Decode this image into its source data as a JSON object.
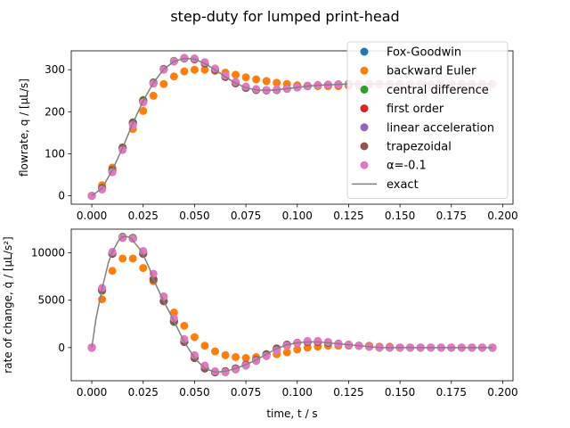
{
  "figure_title": "step-duty for lumped print-head",
  "colors": {
    "Fox-Goodwin": "#1f77b4",
    "backward Euler": "#ff7f0e",
    "central difference": "#2ca02c",
    "first order": "#d62728",
    "linear acceleration": "#9467bd",
    "trapezoidal": "#8c564b",
    "alpha": "#e377c2",
    "exact": "#808080"
  },
  "chart_data": [
    {
      "type": "scatter",
      "panel": "top",
      "ylabel": "flowrate, q / [µL/s]",
      "xlabel": "",
      "xlim": [
        -0.01,
        0.205
      ],
      "ylim": [
        -20,
        345
      ],
      "xticks": [
        "0.000",
        "0.025",
        "0.050",
        "0.075",
        "0.100",
        "0.125",
        "0.150",
        "0.175",
        "0.200"
      ],
      "yticks": [
        "0",
        "100",
        "200",
        "300"
      ],
      "legend": "upper-right",
      "legend_entries": [
        "Fox-Goodwin",
        "backward Euler",
        "central difference",
        "first order",
        "linear acceleration",
        "trapezoidal",
        "α=-0.1",
        "exact"
      ],
      "x": [
        0.0,
        0.005,
        0.01,
        0.015,
        0.02,
        0.025,
        0.03,
        0.035,
        0.04,
        0.045,
        0.05,
        0.055,
        0.06,
        0.065,
        0.07,
        0.075,
        0.08,
        0.085,
        0.09,
        0.095,
        0.1,
        0.105,
        0.11,
        0.115,
        0.12,
        0.125,
        0.13,
        0.135,
        0.14,
        0.145,
        0.15,
        0.155,
        0.16,
        0.165,
        0.17,
        0.175,
        0.18,
        0.185,
        0.19,
        0.195
      ],
      "series": [
        {
          "name": "Fox-Goodwin",
          "values": [
            0,
            18,
            60,
            113,
            172,
            225,
            268,
            301,
            320,
            327,
            325,
            315,
            300,
            283,
            268,
            257,
            252,
            251,
            252,
            255,
            258,
            261,
            263,
            264,
            265,
            266,
            266,
            266,
            266,
            266,
            266,
            266,
            266,
            266,
            266,
            266,
            266,
            266,
            266,
            266
          ]
        },
        {
          "name": "backward Euler",
          "values": [
            0,
            25,
            67,
            115,
            159,
            202,
            238,
            266,
            284,
            296,
            300,
            300,
            297,
            293,
            288,
            282,
            277,
            273,
            269,
            266,
            263,
            262,
            261,
            261,
            261,
            262,
            263,
            264,
            265,
            265,
            266,
            266,
            266,
            266,
            266,
            266,
            266,
            266,
            266,
            266
          ]
        },
        {
          "name": "central difference",
          "values": [
            0,
            19,
            62,
            115,
            175,
            228,
            270,
            302,
            321,
            328,
            326,
            316,
            300,
            283,
            268,
            257,
            252,
            251,
            252,
            255,
            258,
            261,
            263,
            264,
            265,
            266,
            266,
            266,
            266,
            266,
            266,
            266,
            266,
            266,
            266,
            266,
            266,
            266,
            266,
            266
          ]
        },
        {
          "name": "first order",
          "values": [
            0,
            18,
            61,
            114,
            173,
            226,
            269,
            301,
            320,
            327,
            325,
            315,
            300,
            283,
            268,
            257,
            252,
            251,
            252,
            255,
            258,
            261,
            263,
            264,
            265,
            266,
            266,
            266,
            266,
            266,
            266,
            266,
            266,
            266,
            266,
            266,
            266,
            266,
            266,
            266
          ]
        },
        {
          "name": "linear acceleration",
          "values": [
            0,
            18,
            60,
            113,
            172,
            225,
            268,
            301,
            320,
            327,
            325,
            315,
            300,
            283,
            268,
            257,
            252,
            251,
            252,
            255,
            258,
            261,
            263,
            264,
            265,
            266,
            266,
            266,
            266,
            266,
            266,
            266,
            266,
            266,
            266,
            266,
            266,
            266,
            266,
            266
          ]
        },
        {
          "name": "trapezoidal",
          "values": [
            0,
            18,
            60,
            113,
            172,
            225,
            268,
            301,
            320,
            327,
            325,
            315,
            300,
            283,
            268,
            257,
            252,
            251,
            252,
            255,
            258,
            261,
            263,
            264,
            265,
            266,
            266,
            266,
            266,
            266,
            266,
            266,
            266,
            266,
            266,
            266,
            266,
            266,
            266,
            266
          ]
        },
        {
          "name": "α=-0.1",
          "values": [
            0,
            15,
            56,
            109,
            168,
            222,
            267,
            300,
            320,
            328,
            327,
            318,
            303,
            286,
            271,
            260,
            254,
            252,
            253,
            255,
            258,
            261,
            263,
            264,
            265,
            266,
            266,
            266,
            266,
            266,
            266,
            266,
            266,
            266,
            266,
            266,
            266,
            266,
            266,
            266
          ]
        }
      ],
      "exact": {
        "name": "exact",
        "x": [
          0,
          0.005,
          0.01,
          0.015,
          0.02,
          0.025,
          0.03,
          0.035,
          0.04,
          0.045,
          0.05,
          0.055,
          0.06,
          0.065,
          0.07,
          0.075,
          0.08,
          0.085,
          0.09,
          0.095,
          0.1,
          0.105,
          0.11,
          0.115,
          0.12,
          0.125,
          0.13,
          0.14,
          0.15,
          0.16,
          0.17,
          0.18,
          0.19,
          0.195
        ],
        "values": [
          0,
          18,
          61,
          114,
          173,
          226,
          269,
          301,
          320,
          327,
          325,
          315,
          300,
          283,
          268,
          257,
          252,
          251,
          252,
          255,
          258,
          261,
          263,
          264,
          265,
          266,
          266,
          266,
          266,
          266,
          266,
          266,
          266,
          266
        ]
      }
    },
    {
      "type": "scatter",
      "panel": "bottom",
      "ylabel": "rate of change, q̇ / [µL/s²]",
      "xlabel": "time, t / s",
      "xlim": [
        -0.01,
        0.205
      ],
      "ylim": [
        -3500,
        12500
      ],
      "xticks": [
        "0.000",
        "0.025",
        "0.050",
        "0.075",
        "0.100",
        "0.125",
        "0.150",
        "0.175",
        "0.200"
      ],
      "yticks": [
        "0",
        "5000",
        "10000"
      ],
      "x": [
        0.0,
        0.005,
        0.01,
        0.015,
        0.02,
        0.025,
        0.03,
        0.035,
        0.04,
        0.045,
        0.05,
        0.055,
        0.06,
        0.065,
        0.07,
        0.075,
        0.08,
        0.085,
        0.09,
        0.095,
        0.1,
        0.105,
        0.11,
        0.115,
        0.12,
        0.125,
        0.13,
        0.135,
        0.14,
        0.145,
        0.15,
        0.155,
        0.16,
        0.165,
        0.17,
        0.175,
        0.18,
        0.185,
        0.19,
        0.195
      ],
      "series": [
        {
          "name": "Fox-Goodwin",
          "values": [
            0,
            6100,
            9900,
            11600,
            11500,
            9900,
            7200,
            4900,
            2800,
            600,
            -1100,
            -2200,
            -2600,
            -2500,
            -2200,
            -1800,
            -1300,
            -700,
            -100,
            300,
            500,
            600,
            600,
            500,
            400,
            300,
            200,
            100,
            0,
            0,
            0,
            0,
            0,
            0,
            0,
            0,
            0,
            0,
            0,
            0
          ]
        },
        {
          "name": "backward Euler",
          "values": [
            0,
            5100,
            8100,
            9400,
            9400,
            8400,
            7000,
            5400,
            3700,
            2300,
            1100,
            200,
            -400,
            -800,
            -1000,
            -1100,
            -1000,
            -900,
            -700,
            -500,
            -200,
            0,
            100,
            200,
            200,
            200,
            200,
            200,
            100,
            100,
            0,
            0,
            0,
            0,
            0,
            0,
            0,
            0,
            0,
            0
          ]
        },
        {
          "name": "central difference",
          "values": [
            0,
            6000,
            9900,
            11700,
            11600,
            10100,
            7200,
            4900,
            2700,
            600,
            -1100,
            -2100,
            -2600,
            -2600,
            -2300,
            -1900,
            -1400,
            -800,
            -200,
            300,
            500,
            600,
            600,
            500,
            400,
            300,
            200,
            100,
            0,
            0,
            0,
            0,
            0,
            0,
            0,
            0,
            0,
            0,
            0,
            0
          ]
        },
        {
          "name": "first order",
          "values": [
            0,
            6100,
            9900,
            11600,
            11500,
            9900,
            7200,
            4900,
            2800,
            600,
            -1100,
            -2200,
            -2600,
            -2500,
            -2200,
            -1800,
            -1300,
            -700,
            -100,
            300,
            500,
            600,
            600,
            500,
            400,
            300,
            200,
            100,
            0,
            0,
            0,
            0,
            0,
            0,
            0,
            0,
            0,
            0,
            0,
            0
          ]
        },
        {
          "name": "linear acceleration",
          "values": [
            0,
            6100,
            9900,
            11600,
            11500,
            9900,
            7200,
            4900,
            2800,
            600,
            -1100,
            -2200,
            -2600,
            -2500,
            -2200,
            -1800,
            -1300,
            -700,
            -100,
            300,
            500,
            600,
            600,
            500,
            400,
            300,
            200,
            100,
            0,
            0,
            0,
            0,
            0,
            0,
            0,
            0,
            0,
            0,
            0,
            0
          ]
        },
        {
          "name": "trapezoidal",
          "values": [
            0,
            6100,
            9900,
            11600,
            11500,
            9900,
            7200,
            4900,
            2800,
            600,
            -1100,
            -2200,
            -2600,
            -2500,
            -2200,
            -1800,
            -1300,
            -700,
            -100,
            300,
            500,
            600,
            600,
            500,
            400,
            300,
            200,
            100,
            0,
            0,
            0,
            0,
            0,
            0,
            0,
            0,
            0,
            0,
            0,
            0
          ]
        },
        {
          "name": "α=-0.1",
          "values": [
            0,
            6300,
            10100,
            11600,
            11500,
            10200,
            7800,
            5400,
            3100,
            900,
            -800,
            -1900,
            -2500,
            -2600,
            -2300,
            -1900,
            -1400,
            -900,
            -300,
            200,
            500,
            700,
            700,
            600,
            400,
            300,
            200,
            100,
            0,
            0,
            0,
            0,
            0,
            0,
            0,
            0,
            0,
            0,
            0,
            0
          ]
        }
      ],
      "exact": {
        "name": "exact",
        "x": [
          0,
          0.002,
          0.005,
          0.008,
          0.01,
          0.013,
          0.015,
          0.018,
          0.02,
          0.023,
          0.025,
          0.028,
          0.03,
          0.033,
          0.035,
          0.04,
          0.045,
          0.05,
          0.055,
          0.06,
          0.065,
          0.07,
          0.075,
          0.08,
          0.085,
          0.09,
          0.095,
          0.1,
          0.105,
          0.11,
          0.115,
          0.12,
          0.13,
          0.14,
          0.15,
          0.16,
          0.17,
          0.18,
          0.19,
          0.195
        ],
        "values": [
          0,
          3000,
          6200,
          8900,
          10100,
          11300,
          11700,
          11700,
          11300,
          10500,
          9800,
          8400,
          7200,
          5800,
          4900,
          2800,
          600,
          -1100,
          -2200,
          -2600,
          -2500,
          -2200,
          -1800,
          -1300,
          -700,
          -100,
          300,
          500,
          600,
          600,
          500,
          400,
          200,
          0,
          0,
          0,
          0,
          0,
          0,
          0
        ]
      }
    }
  ]
}
